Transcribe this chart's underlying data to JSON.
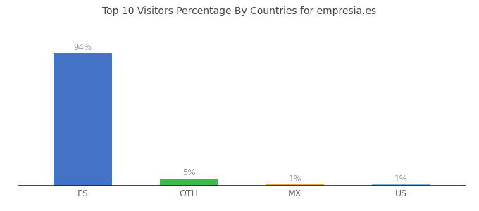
{
  "categories": [
    "ES",
    "OTH",
    "MX",
    "US"
  ],
  "values": [
    94,
    5,
    1,
    1
  ],
  "bar_colors": [
    "#4472c4",
    "#3dba4e",
    "#e8a838",
    "#7ab3e0"
  ],
  "labels": [
    "94%",
    "5%",
    "1%",
    "1%"
  ],
  "title": "Top 10 Visitors Percentage By Countries for empresia.es",
  "title_fontsize": 10,
  "label_fontsize": 8.5,
  "tick_fontsize": 9,
  "background_color": "#ffffff",
  "ylim": [
    0,
    105
  ],
  "bar_width": 0.55,
  "label_color": "#999999",
  "tick_color": "#666666",
  "spine_color": "#222222"
}
